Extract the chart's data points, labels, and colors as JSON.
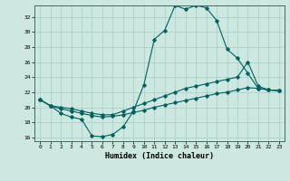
{
  "xlabel": "Humidex (Indice chaleur)",
  "ylabel": "",
  "bg_color": "#cce8e0",
  "grid_color": "#aacccc",
  "line_color": "#006060",
  "xlim": [
    -0.5,
    23.5
  ],
  "ylim": [
    15.5,
    33.5
  ],
  "yticks": [
    16,
    18,
    20,
    22,
    24,
    26,
    28,
    30,
    32
  ],
  "xticks": [
    0,
    1,
    2,
    3,
    4,
    5,
    6,
    7,
    8,
    9,
    10,
    11,
    12,
    13,
    14,
    15,
    16,
    17,
    18,
    19,
    20,
    21,
    22,
    23
  ],
  "series": [
    {
      "x": [
        0,
        1,
        2,
        3,
        4,
        5,
        6,
        7,
        8,
        9,
        10,
        11,
        12,
        13,
        14,
        15,
        16,
        17,
        18,
        19,
        20,
        21,
        22,
        23
      ],
      "y": [
        21.0,
        20.2,
        19.2,
        18.7,
        18.4,
        16.2,
        16.1,
        16.4,
        17.4,
        19.5,
        23.0,
        29.0,
        30.2,
        33.5,
        33.0,
        33.5,
        33.2,
        31.5,
        27.7,
        26.5,
        24.5,
        22.5,
        22.3,
        22.2
      ]
    },
    {
      "x": [
        0,
        1,
        2,
        3,
        4,
        5,
        6,
        7,
        8,
        9,
        10,
        11,
        12,
        13,
        14,
        15,
        16,
        17,
        18,
        19,
        20,
        21,
        22,
        23
      ],
      "y": [
        21.0,
        20.2,
        20.0,
        19.8,
        19.5,
        19.2,
        19.0,
        19.0,
        19.5,
        20.0,
        20.5,
        21.0,
        21.5,
        22.0,
        22.5,
        22.8,
        23.1,
        23.4,
        23.7,
        24.0,
        26.0,
        22.8,
        22.3,
        22.2
      ]
    },
    {
      "x": [
        0,
        1,
        2,
        3,
        4,
        5,
        6,
        7,
        8,
        9,
        10,
        11,
        12,
        13,
        14,
        15,
        16,
        17,
        18,
        19,
        20,
        21,
        22,
        23
      ],
      "y": [
        21.0,
        20.2,
        19.8,
        19.5,
        19.2,
        18.9,
        18.7,
        18.8,
        19.0,
        19.3,
        19.6,
        20.0,
        20.3,
        20.6,
        20.9,
        21.2,
        21.5,
        21.8,
        22.0,
        22.3,
        22.6,
        22.5,
        22.3,
        22.2
      ]
    }
  ]
}
